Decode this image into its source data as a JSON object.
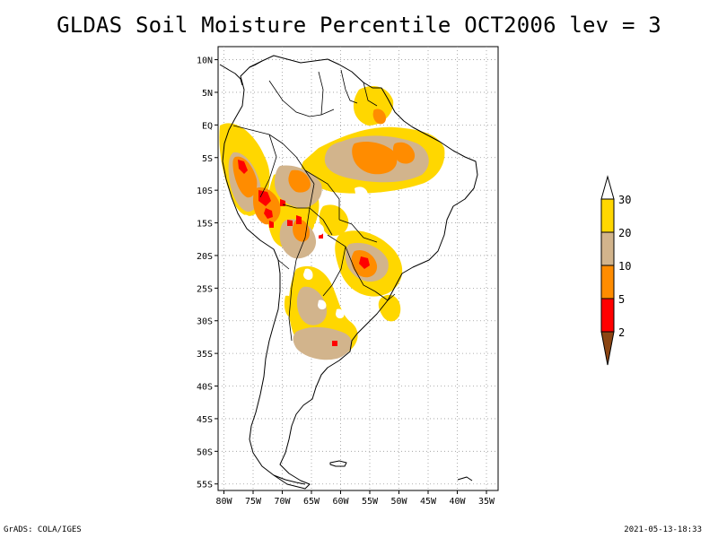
{
  "title": "GLDAS Soil Moisture Percentile OCT2006 lev = 3",
  "footer": {
    "left": "GrADS: COLA/IGES",
    "right": "2021-05-13-18:33"
  },
  "map": {
    "lat_ticks": [
      {
        "label": "10N",
        "value": 10
      },
      {
        "label": "5N",
        "value": 5
      },
      {
        "label": "EQ",
        "value": 0
      },
      {
        "label": "5S",
        "value": -5
      },
      {
        "label": "10S",
        "value": -10
      },
      {
        "label": "15S",
        "value": -15
      },
      {
        "label": "20S",
        "value": -20
      },
      {
        "label": "25S",
        "value": -25
      },
      {
        "label": "30S",
        "value": -30
      },
      {
        "label": "35S",
        "value": -35
      },
      {
        "label": "40S",
        "value": -40
      },
      {
        "label": "45S",
        "value": -45
      },
      {
        "label": "50S",
        "value": -50
      },
      {
        "label": "55S",
        "value": -55
      }
    ],
    "lon_ticks": [
      {
        "label": "80W",
        "value": -80
      },
      {
        "label": "75W",
        "value": -75
      },
      {
        "label": "70W",
        "value": -70
      },
      {
        "label": "65W",
        "value": -65
      },
      {
        "label": "60W",
        "value": -60
      },
      {
        "label": "55W",
        "value": -55
      },
      {
        "label": "50W",
        "value": -50
      },
      {
        "label": "45W",
        "value": -45
      },
      {
        "label": "40W",
        "value": -40
      },
      {
        "label": "35W",
        "value": -35
      }
    ],
    "lon_range": [
      -81,
      -33
    ],
    "lat_range": [
      -56,
      12
    ],
    "colors": {
      "below_2": "#8b4513",
      "2_5": "#ff0000",
      "5_10": "#ff8c00",
      "10_20": "#d2b48c",
      "20_30": "#ffd700",
      "above_30": "#ffffff"
    }
  },
  "colorbar": {
    "breaks": [
      "2",
      "5",
      "10",
      "20",
      "30"
    ],
    "colors": [
      "#8b4513",
      "#ff0000",
      "#ff8c00",
      "#d2b48c",
      "#ffd700",
      "#ffffff"
    ]
  }
}
